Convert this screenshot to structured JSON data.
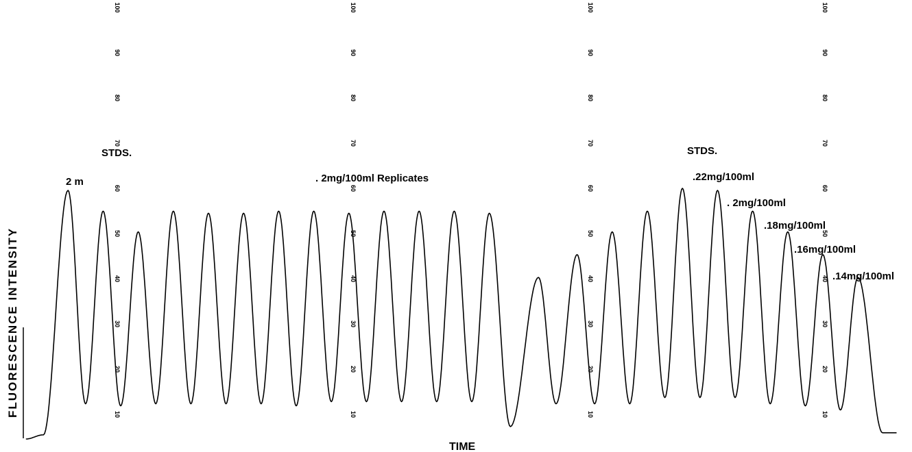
{
  "chart_data": {
    "type": "line",
    "xlabel": "TIME",
    "ylabel": "FLUORESCENCE INTENSITY",
    "ylim": [
      0,
      100
    ],
    "grid": false,
    "scale_ticks": [
      "10",
      "20",
      "30",
      "40",
      "50",
      "60",
      "70",
      "80",
      "90",
      "100"
    ],
    "annotations": {
      "stds_left": "STDS.",
      "stds_right": "STDS.",
      "first_peak": "2 m",
      "replicates": ". 2mg/100ml Replicates",
      "std_022": ".22mg/100ml",
      "std_020": ". 2mg/100ml",
      "std_018": ".18mg/100ml",
      "std_016": ".16mg/100ml",
      "std_014": ".14mg/100ml"
    },
    "series": [
      {
        "peaks": [
          {
            "t": 1.0,
            "v": 60
          },
          {
            "t": 2.0,
            "v": 55
          },
          {
            "t": 3.0,
            "v": 50
          },
          {
            "t": 4.0,
            "v": 55
          },
          {
            "t": 5.0,
            "v": 54.5
          },
          {
            "t": 6.0,
            "v": 54.5
          },
          {
            "t": 7.0,
            "v": 55
          },
          {
            "t": 8.0,
            "v": 55
          },
          {
            "t": 9.0,
            "v": 54.5
          },
          {
            "t": 10.0,
            "v": 55
          },
          {
            "t": 11.0,
            "v": 55
          },
          {
            "t": 12.0,
            "v": 55
          },
          {
            "t": 13.0,
            "v": 54.5
          },
          {
            "t": 14.4,
            "v": 39
          },
          {
            "t": 15.5,
            "v": 44.5
          },
          {
            "t": 16.5,
            "v": 50
          },
          {
            "t": 17.5,
            "v": 55
          },
          {
            "t": 18.5,
            "v": 60.5
          },
          {
            "t": 19.5,
            "v": 60
          },
          {
            "t": 20.5,
            "v": 55
          },
          {
            "t": 21.5,
            "v": 50
          },
          {
            "t": 22.5,
            "v": 44.5
          },
          {
            "t": 23.5,
            "v": 39
          }
        ],
        "valleys": [
          {
            "t": -0.2,
            "v": 0
          },
          {
            "t": 0.3,
            "v": 1
          },
          {
            "t": 1.5,
            "v": 8.5
          },
          {
            "t": 2.5,
            "v": 8
          },
          {
            "t": 3.5,
            "v": 8.5
          },
          {
            "t": 4.5,
            "v": 8.5
          },
          {
            "t": 5.5,
            "v": 8.5
          },
          {
            "t": 6.5,
            "v": 8.5
          },
          {
            "t": 7.5,
            "v": 8
          },
          {
            "t": 8.5,
            "v": 9
          },
          {
            "t": 9.5,
            "v": 9
          },
          {
            "t": 10.5,
            "v": 9
          },
          {
            "t": 11.5,
            "v": 9
          },
          {
            "t": 12.5,
            "v": 9
          },
          {
            "t": 13.6,
            "v": 3
          },
          {
            "t": 14.9,
            "v": 8.5
          },
          {
            "t": 16.0,
            "v": 8.5
          },
          {
            "t": 17.0,
            "v": 8.5
          },
          {
            "t": 18.0,
            "v": 10
          },
          {
            "t": 19.0,
            "v": 10
          },
          {
            "t": 20.0,
            "v": 10
          },
          {
            "t": 21.0,
            "v": 8.5
          },
          {
            "t": 22.0,
            "v": 8
          },
          {
            "t": 23.0,
            "v": 7
          },
          {
            "t": 24.2,
            "v": 1.5
          },
          {
            "t": 24.6,
            "v": 1.5
          }
        ]
      }
    ]
  }
}
